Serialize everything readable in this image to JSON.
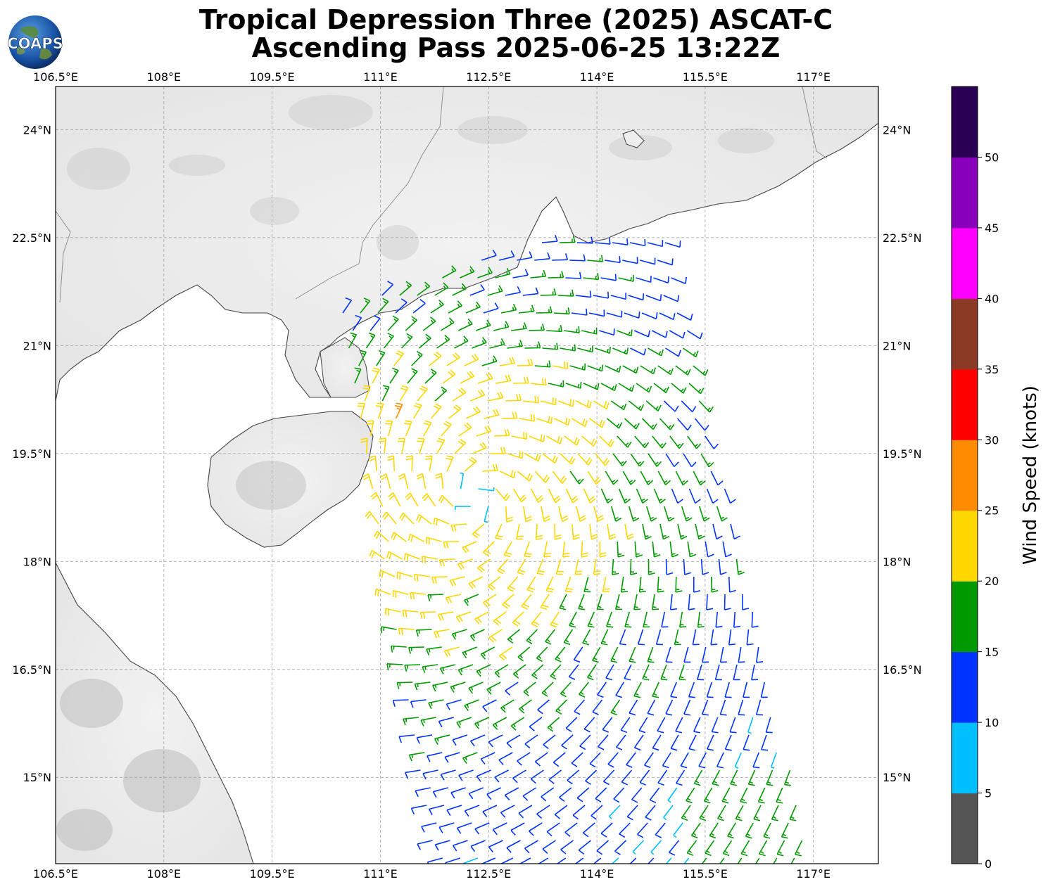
{
  "header": {
    "title_line1": "Tropical Depression Three (2025) ASCAT-C",
    "title_line2": "Ascending Pass 2025-06-25 13:22Z",
    "logo_text": "COAPS"
  },
  "map": {
    "lon_ticks": [
      "106.5°E",
      "108°E",
      "109.5°E",
      "111°E",
      "112.5°E",
      "114°E",
      "115.5°E",
      "117°E"
    ],
    "lat_ticks": [
      "24°N",
      "22.5°N",
      "21°N",
      "19.5°N",
      "18°N",
      "16.5°N",
      "15°N"
    ],
    "lon_range": [
      106.5,
      117.9
    ],
    "lat_range": [
      13.8,
      24.6
    ],
    "storm_center": {
      "lon": 112.3,
      "lat": 18.9
    }
  },
  "colorbar": {
    "label": "Wind Speed (knots)",
    "ticks": [
      "0",
      "5",
      "10",
      "15",
      "20",
      "25",
      "30",
      "35",
      "40",
      "45",
      "50"
    ],
    "colors": [
      "#555555",
      "#00bfff",
      "#0033ff",
      "#009900",
      "#ffd700",
      "#ff8c00",
      "#ff0000",
      "#8b3a26",
      "#ff00ff",
      "#8800bb",
      "#2a0055"
    ]
  }
}
